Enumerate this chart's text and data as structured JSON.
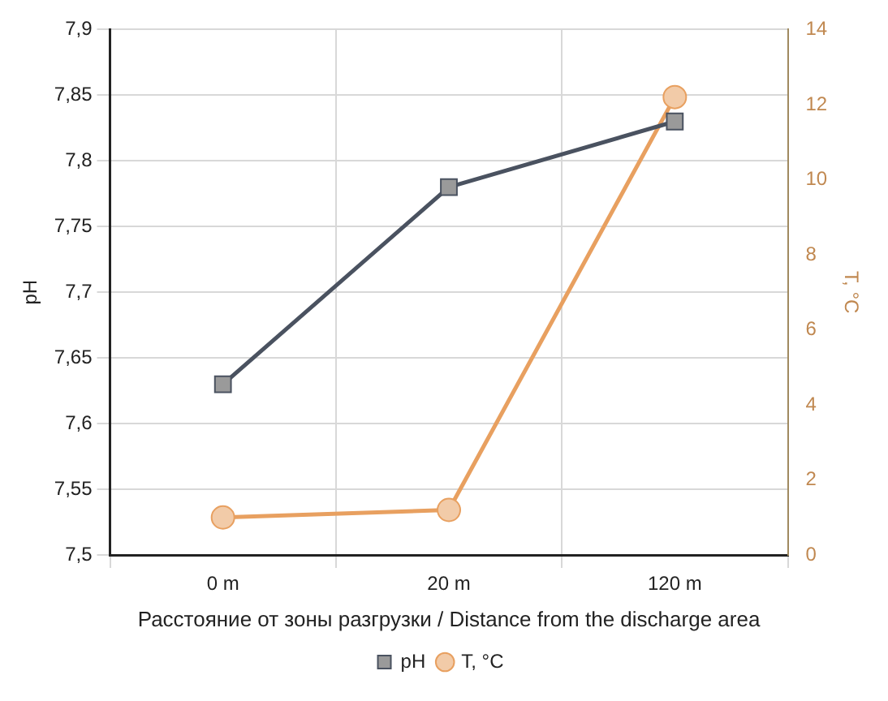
{
  "chart_data": {
    "type": "line",
    "xlabel": "Расстояние от зоны разгрузки / Distance from the discharge area",
    "ylabel": "pH",
    "y2label": "T, °C",
    "categories": [
      "0 m",
      "20 m",
      "120 m"
    ],
    "series": [
      {
        "name": "pH",
        "color": "#4a5260",
        "marker": "square",
        "values": [
          7.63,
          7.78,
          7.83
        ]
      },
      {
        "name": "T, °C",
        "color": "#e8a060",
        "marker": "circle",
        "axis": "y2",
        "values": [
          1.0,
          1.2,
          12.2
        ]
      }
    ],
    "ylim": [
      7.5,
      7.9
    ],
    "yticks": [
      {
        "value": 7.5,
        "label": "7,5"
      },
      {
        "value": 7.55,
        "label": "7,55"
      },
      {
        "value": 7.6,
        "label": "7,6"
      },
      {
        "value": 7.65,
        "label": "7,65"
      },
      {
        "value": 7.7,
        "label": "7,7"
      },
      {
        "value": 7.75,
        "label": "7,75"
      },
      {
        "value": 7.8,
        "label": "7,8"
      },
      {
        "value": 7.85,
        "label": "7,85"
      },
      {
        "value": 7.9,
        "label": "7,9"
      }
    ],
    "y2lim": [
      0,
      14
    ],
    "y2ticks": [
      0,
      2,
      4,
      6,
      8,
      10,
      12,
      14
    ],
    "grid": true,
    "legend": "bottom"
  }
}
